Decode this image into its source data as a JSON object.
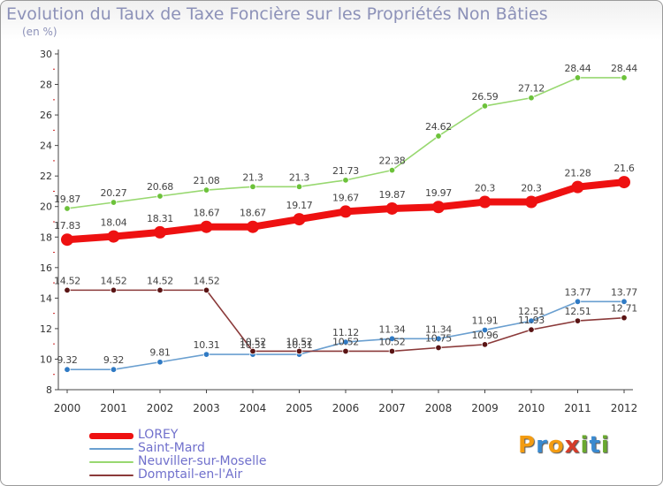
{
  "title": "Evolution du Taux de Taxe Foncière sur les Propriétés Non Bâties",
  "subtitle": "(en %)",
  "logo": {
    "letters": [
      "P",
      "r",
      "o",
      "x",
      "i",
      "t",
      "i"
    ],
    "colors": [
      "#f39c12",
      "#3a8ad0",
      "#f39c12",
      "#d43c2a",
      "#6aa830",
      "#3a8ad0",
      "#6aa830"
    ]
  },
  "chart_data": {
    "type": "line",
    "title": "Evolution du Taux de Taxe Foncière sur les Propriétés Non Bâties",
    "ylabel": "(en %)",
    "xlabel": "",
    "x": [
      2000,
      2001,
      2002,
      2003,
      2004,
      2005,
      2006,
      2007,
      2008,
      2009,
      2010,
      2011,
      2012
    ],
    "ylim": [
      8,
      30
    ],
    "yticks": [
      8,
      10,
      12,
      14,
      16,
      18,
      20,
      22,
      24,
      26,
      28,
      30
    ],
    "grid": false,
    "legend_position": "bottom-left",
    "series": [
      {
        "name": "LOREY",
        "color": "#ee1111",
        "emphasis": true,
        "values": [
          17.83,
          18.04,
          18.31,
          18.67,
          18.67,
          19.17,
          19.67,
          19.87,
          19.97,
          20.3,
          20.3,
          21.28,
          21.6
        ],
        "labels": [
          "17.83",
          "18.04",
          "18.31",
          "18.67",
          "18.67",
          "19.17",
          "19.67",
          "19.87",
          "19.97",
          "20.3",
          "20.3",
          "21.28",
          "21.6"
        ]
      },
      {
        "name": "Saint-Mard",
        "color": "#6a9fd0",
        "point_color": "#2f7ac4",
        "values": [
          9.32,
          9.32,
          9.81,
          10.31,
          10.31,
          10.31,
          11.12,
          11.34,
          11.34,
          11.91,
          12.51,
          13.77,
          13.77
        ],
        "labels": [
          "9.32",
          "9.32",
          "9.81",
          "10.31",
          "10.31",
          "10.31",
          "11.12",
          "11.34",
          "11.34",
          "11.91",
          "12.51",
          "13.77",
          "13.77"
        ]
      },
      {
        "name": "Neuviller-sur-Moselle",
        "color": "#98d870",
        "point_color": "#6cc23a",
        "values": [
          19.87,
          20.27,
          20.68,
          21.08,
          21.3,
          21.3,
          21.73,
          22.38,
          24.62,
          26.59,
          27.12,
          28.44,
          28.44
        ],
        "labels": [
          "19.87",
          "20.27",
          "20.68",
          "21.08",
          "21.3",
          "21.3",
          "21.73",
          "22.38",
          "24.62",
          "26.59",
          "27.12",
          "28.44",
          "28.44"
        ]
      },
      {
        "name": "Domptail-en-l'Air",
        "color": "#8b3a3a",
        "point_color": "#5a1414",
        "values": [
          14.52,
          14.52,
          14.52,
          14.52,
          10.52,
          10.52,
          10.52,
          10.52,
          10.75,
          10.96,
          11.93,
          12.51,
          12.71
        ],
        "labels": [
          "14.52",
          "14.52",
          "14.52",
          "14.52",
          "10.52",
          "10.52",
          "10.52",
          "10.52",
          "10.75",
          "10.96",
          "11.93",
          "12.51",
          "12.71"
        ]
      }
    ]
  }
}
